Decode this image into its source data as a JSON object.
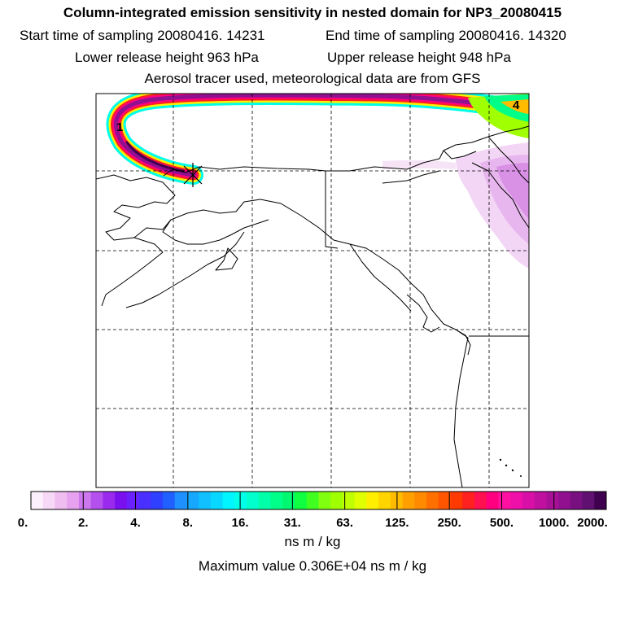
{
  "header": {
    "title": "Column-integrated emission sensitivity in nested domain for NP3_20080415",
    "start_sampling": "Start time of sampling 20080416. 14231",
    "end_sampling": "End time of sampling 20080416. 14320",
    "lower_release": "Lower release height  963 hPa",
    "upper_release": "Upper release height  948 hPa",
    "tracer_info": "Aerosol tracer used, meteorological data are from GFS"
  },
  "map": {
    "labels": {
      "start_marker": "1",
      "end_marker": "4"
    }
  },
  "colorbar": {
    "tick_labels": [
      "0.",
      "2.",
      "4.",
      "8.",
      "16.",
      "31.",
      "63.",
      "125.",
      "250.",
      "500.",
      "1000.",
      "2000."
    ],
    "colors": [
      "#fdf0fd",
      "#f7d8f7",
      "#efbdef",
      "#e7a2ef",
      "#cc77ee",
      "#b350ee",
      "#9a2bee",
      "#7a10ee",
      "#6a20ff",
      "#4a30ff",
      "#3040ff",
      "#2060ff",
      "#1e90ff",
      "#16a8ff",
      "#10c0ff",
      "#08d8ff",
      "#00f5ff",
      "#00ffe8",
      "#00ffcc",
      "#00ffa8",
      "#00ff88",
      "#00f870",
      "#10ff40",
      "#40ff20",
      "#80ff10",
      "#a0ff00",
      "#c0ff00",
      "#e0ff00",
      "#ffee00",
      "#ffd400",
      "#ffbb00",
      "#ffa000",
      "#ff8a00",
      "#ff7000",
      "#ff5500",
      "#ff3a00",
      "#ff2020",
      "#ff1050",
      "#ff0080",
      "#ff10a0",
      "#ee10a8",
      "#d810a8",
      "#c010a0",
      "#a81098",
      "#901090",
      "#781080",
      "#601070",
      "#400050"
    ],
    "unit": "ns m / kg",
    "maximum": "Maximum value  0.306E+04 ns m / kg"
  }
}
